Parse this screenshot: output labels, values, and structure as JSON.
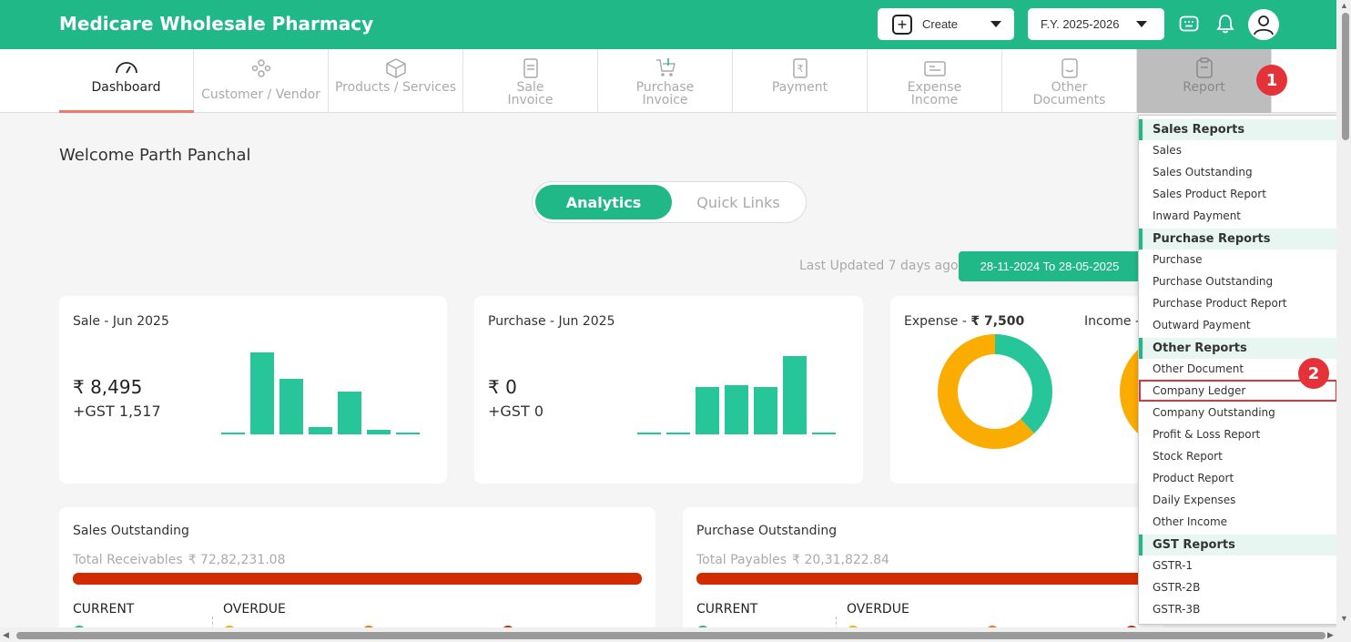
{
  "header": {
    "brand": "Medicare Wholesale Pharmacy",
    "create_label": "Create",
    "fy_label": "F.Y. 2025-2026"
  },
  "nav": {
    "tabs": [
      {
        "label": "Dashboard",
        "icon": "speedometer-icon"
      },
      {
        "label": "Customer / Vendor",
        "icon": "people-icon"
      },
      {
        "label": "Products / Services",
        "icon": "box-icon"
      },
      {
        "label": "Sale\nInvoice",
        "icon": "invoice-icon"
      },
      {
        "label": "Purchase\nInvoice",
        "icon": "cart-icon"
      },
      {
        "label": "Payment",
        "icon": "rupee-doc-icon"
      },
      {
        "label": "Expense\nIncome",
        "icon": "wallet-icon"
      },
      {
        "label": "Other\nDocuments",
        "icon": "document-icon"
      },
      {
        "label": "Report",
        "icon": "clipboard-icon"
      }
    ],
    "step1": "1",
    "step2": "2"
  },
  "welcome": "Welcome Parth Panchal",
  "toggle": {
    "active": "Analytics",
    "inactive": "Quick Links"
  },
  "last_updated": "Last Updated 7 days ago",
  "date_range": "28-11-2024 To 28-05-2025",
  "sale_card": {
    "title": "Sale - Jun 2025",
    "value": "₹ 8,495",
    "gst": "+GST 1,517"
  },
  "purchase_card": {
    "title": "Purchase - Jun 2025",
    "value": "₹ 0",
    "gst": "+GST 0"
  },
  "expense_card": {
    "expense_label": "Expense -",
    "expense_value": "₹ 7,500",
    "income_label": "Income -"
  },
  "sales_outstanding": {
    "title": "Sales Outstanding",
    "sub_label": "Total Receivables",
    "sub_value": "₹ 72,82,231.08",
    "current": "CURRENT",
    "overdue": "OVERDUE"
  },
  "purchase_outstanding": {
    "title": "Purchase Outstanding",
    "sub_label": "Total Payables",
    "sub_value": "₹ 20,31,822.84",
    "current": "CURRENT",
    "overdue": "OVERDUE"
  },
  "report_menu": {
    "sales_head": "Sales Reports",
    "sales_items": [
      "Sales",
      "Sales Outstanding",
      "Sales Product Report",
      "Inward Payment"
    ],
    "purchase_head": "Purchase Reports",
    "purchase_items": [
      "Purchase",
      "Purchase Outstanding",
      "Purchase Product Report",
      "Outward Payment"
    ],
    "other_head": "Other Reports",
    "other_items": [
      "Other Document",
      "Company Ledger",
      "Company Outstanding",
      "Profit & Loss Report",
      "Stock Report",
      "Product Report",
      "Daily Expenses",
      "Other Income"
    ],
    "gst_head": "GST Reports",
    "gst_items": [
      "GSTR-1",
      "GSTR-2B",
      "GSTR-3B"
    ]
  },
  "colors": {
    "brand": "#21b888",
    "bar": "#26c59a",
    "donut_orange": "#fbac00",
    "alert_red": "#e53238",
    "outstanding_red": "#d32b00"
  },
  "chart_data": [
    {
      "type": "bar",
      "title": "Sale - Jun 2025",
      "values": [
        1,
        90,
        61,
        8,
        47,
        5,
        1
      ]
    },
    {
      "type": "bar",
      "title": "Purchase - Jun 2025",
      "values": [
        1,
        1,
        52,
        54,
        52,
        86,
        1
      ]
    },
    {
      "type": "pie",
      "title": "Expense - ₹ 7,500",
      "values": [
        0.38,
        0.62
      ],
      "colors": [
        "#26c59a",
        "#fbac00"
      ]
    }
  ]
}
